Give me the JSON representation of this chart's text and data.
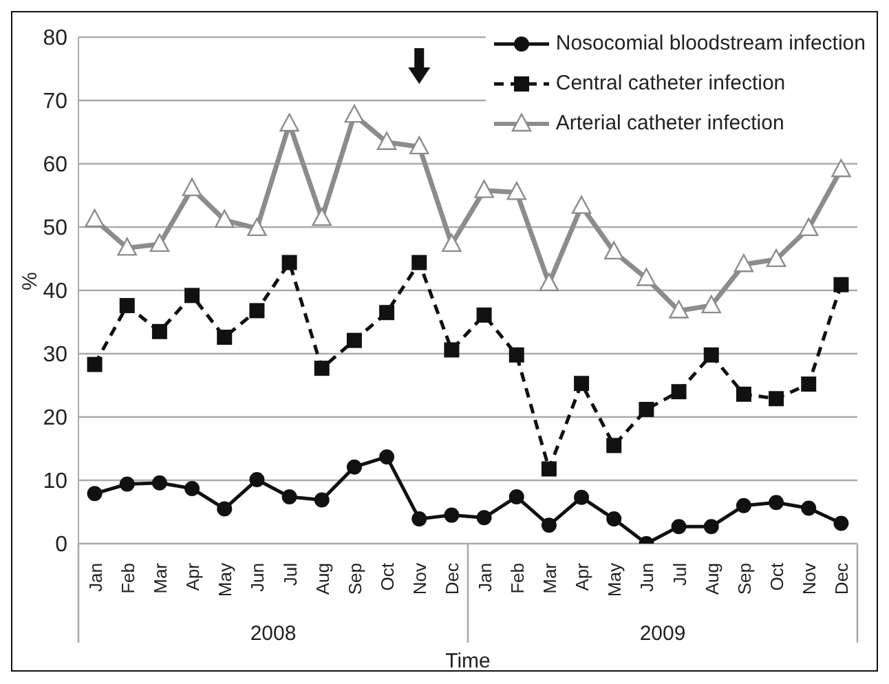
{
  "chart_data": {
    "type": "line",
    "xlabel": "Time",
    "ylabel": "%",
    "categories": [
      "Jan",
      "Feb",
      "Mar",
      "Apr",
      "May",
      "Jun",
      "Jul",
      "Aug",
      "Sep",
      "Oct",
      "Nov",
      "Dec",
      "Jan",
      "Feb",
      "Mar",
      "Apr",
      "May",
      "Jun",
      "Jul",
      "Aug",
      "Sep",
      "Oct",
      "Nov",
      "Dec"
    ],
    "series": [
      {
        "name": "Nosocomial bloodstream infection",
        "color": "#111111",
        "marker": "circle",
        "line_style": "solid",
        "values": [
          7.9,
          9.4,
          9.6,
          8.7,
          5.5,
          10.1,
          7.4,
          6.9,
          12.1,
          13.7,
          3.9,
          4.5,
          4.1,
          7.4,
          2.9,
          7.3,
          3.9,
          0,
          2.7,
          2.7,
          6.0,
          6.5,
          5.6,
          3.2
        ]
      },
      {
        "name": "Central catheter infection",
        "color": "#111111",
        "marker": "square",
        "line_style": "dashed",
        "values": [
          28.3,
          37.6,
          33.5,
          39.2,
          32.6,
          36.8,
          44.4,
          27.7,
          32.1,
          36.5,
          44.4,
          30.6,
          36.1,
          29.8,
          11.8,
          25.3,
          15.5,
          21.2,
          24,
          29.8,
          23.6,
          22.9,
          25.2,
          40.9
        ]
      },
      {
        "name": "Arterial catheter infection",
        "color": "#8c8c8c",
        "marker": "triangle",
        "line_style": "solid",
        "values": [
          51.2,
          46.7,
          47.3,
          56.1,
          51.1,
          49.8,
          66.3,
          51.4,
          67.7,
          63.4,
          62.7,
          47.3,
          55.8,
          55.5,
          41.1,
          53.3,
          46.1,
          41.9,
          36.8,
          37.6,
          44.1,
          44.9,
          49.8,
          59.1
        ]
      }
    ],
    "ylim": [
      0,
      80
    ],
    "yticks": [
      0,
      10,
      20,
      30,
      40,
      50,
      60,
      70,
      80
    ],
    "grid": "y",
    "legend": "top right",
    "annotations": [
      "2008",
      "2009"
    ]
  }
}
